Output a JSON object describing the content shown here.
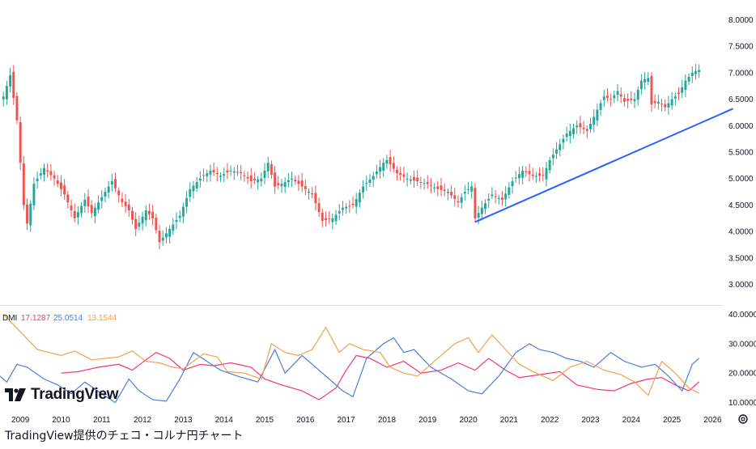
{
  "caption": "TradingView提供のチェコ・コルナ円チャート",
  "logo_text": "TradingView",
  "icons": {
    "logo": "tradingview-logo-icon",
    "settings": "gear-icon"
  },
  "colors": {
    "up": "#26a69a",
    "down": "#ef5350",
    "trendline": "#2962ff",
    "plus_di": "#f23674",
    "minus_di": "#4a7de0",
    "adx": "#f2a14a"
  },
  "chart_data": [
    {
      "type": "candlestick",
      "title": "",
      "interval": "monthly",
      "x_range": [
        "2008-07",
        "2026-04"
      ],
      "ylim": [
        2.75,
        8.25
      ],
      "yticks": [
        "8.0000",
        "7.5000",
        "7.0000",
        "6.5000",
        "6.0000",
        "5.5000",
        "5.0000",
        "4.5000",
        "4.0000",
        "3.5000",
        "3.0000"
      ],
      "ytick_values": [
        8,
        7.5,
        7,
        6.5,
        6,
        5.5,
        5,
        4.5,
        4,
        3.5,
        3
      ],
      "xticks": [
        "2009",
        "2010",
        "2011",
        "2012",
        "2013",
        "2014",
        "2015",
        "2016",
        "2017",
        "2018",
        "2019",
        "2020",
        "2021",
        "2022",
        "2023",
        "2024",
        "2025",
        "2026"
      ],
      "close_path": [
        [
          "2008-08",
          6.55
        ],
        [
          "2008-10",
          6.95
        ],
        [
          "2008-12",
          6.1
        ],
        [
          "2009-02",
          4.5
        ],
        [
          "2009-03",
          4.15
        ],
        [
          "2009-05",
          4.9
        ],
        [
          "2009-08",
          5.2
        ],
        [
          "2009-11",
          5.0
        ],
        [
          "2010-02",
          4.7
        ],
        [
          "2010-05",
          4.25
        ],
        [
          "2010-08",
          4.6
        ],
        [
          "2010-10",
          4.35
        ],
        [
          "2011-02",
          4.75
        ],
        [
          "2011-04",
          4.95
        ],
        [
          "2011-07",
          4.55
        ],
        [
          "2011-09",
          4.4
        ],
        [
          "2011-11",
          4.05
        ],
        [
          "2012-02",
          4.4
        ],
        [
          "2012-04",
          4.25
        ],
        [
          "2012-06",
          3.8
        ],
        [
          "2012-09",
          4.05
        ],
        [
          "2012-12",
          4.3
        ],
        [
          "2013-03",
          4.8
        ],
        [
          "2013-06",
          5.0
        ],
        [
          "2013-09",
          5.15
        ],
        [
          "2013-12",
          5.05
        ],
        [
          "2014-03",
          5.15
        ],
        [
          "2014-06",
          5.1
        ],
        [
          "2014-09",
          4.95
        ],
        [
          "2014-12",
          5.0
        ],
        [
          "2015-02",
          5.3
        ],
        [
          "2015-04",
          4.85
        ],
        [
          "2015-06",
          4.9
        ],
        [
          "2015-09",
          5.0
        ],
        [
          "2015-12",
          4.85
        ],
        [
          "2016-03",
          4.7
        ],
        [
          "2016-06",
          4.2
        ],
        [
          "2016-09",
          4.25
        ],
        [
          "2016-12",
          4.45
        ],
        [
          "2017-03",
          4.5
        ],
        [
          "2017-06",
          4.85
        ],
        [
          "2017-09",
          5.05
        ],
        [
          "2017-12",
          5.3
        ],
        [
          "2018-01",
          5.35
        ],
        [
          "2018-04",
          5.1
        ],
        [
          "2018-07",
          5.0
        ],
        [
          "2018-10",
          4.95
        ],
        [
          "2019-01",
          4.9
        ],
        [
          "2019-04",
          4.8
        ],
        [
          "2019-07",
          4.75
        ],
        [
          "2019-10",
          4.55
        ],
        [
          "2019-12",
          4.75
        ],
        [
          "2020-02",
          4.85
        ],
        [
          "2020-03",
          4.25
        ],
        [
          "2020-05",
          4.45
        ],
        [
          "2020-08",
          4.7
        ],
        [
          "2020-11",
          4.6
        ],
        [
          "2021-02",
          4.95
        ],
        [
          "2021-05",
          5.15
        ],
        [
          "2021-08",
          5.05
        ],
        [
          "2021-11",
          5.05
        ],
        [
          "2022-01",
          5.35
        ],
        [
          "2022-03",
          5.55
        ],
        [
          "2022-06",
          5.85
        ],
        [
          "2022-09",
          6.0
        ],
        [
          "2022-12",
          5.9
        ],
        [
          "2023-03",
          6.3
        ],
        [
          "2023-05",
          6.55
        ],
        [
          "2023-07",
          6.5
        ],
        [
          "2023-09",
          6.65
        ],
        [
          "2023-11",
          6.45
        ],
        [
          "2024-02",
          6.5
        ],
        [
          "2024-04",
          6.85
        ],
        [
          "2024-06",
          6.9
        ],
        [
          "2024-07",
          6.4
        ],
        [
          "2024-09",
          6.45
        ],
        [
          "2024-11",
          6.35
        ],
        [
          "2025-01",
          6.5
        ],
        [
          "2025-03",
          6.6
        ],
        [
          "2025-05",
          6.85
        ],
        [
          "2025-07",
          7.0
        ],
        [
          "2025-09",
          7.05
        ]
      ],
      "trendline": {
        "from": [
          "2020-03",
          4.18
        ],
        "to": [
          "2026-07",
          6.32
        ]
      }
    },
    {
      "type": "line",
      "title": "DMI",
      "ylim": [
        8,
        42
      ],
      "yticks": [
        "40.0000",
        "30.0000",
        "20.0000",
        "10.0000"
      ],
      "ytick_values": [
        40,
        30,
        20,
        10
      ],
      "legend": [
        "17.1287",
        "25.0514",
        "13.1544"
      ],
      "series": [
        {
          "name": "",
          "color_key": "plus_di",
          "points": [
            [
              "2010-01",
              20
            ],
            [
              "2010-06",
              20.5
            ],
            [
              "2010-12",
              22
            ],
            [
              "2011-06",
              23
            ],
            [
              "2011-10",
              21
            ],
            [
              "2012-02",
              24.5
            ],
            [
              "2012-05",
              27
            ],
            [
              "2012-09",
              25
            ],
            [
              "2013-01",
              21
            ],
            [
              "2013-06",
              23
            ],
            [
              "2013-10",
              22.5
            ],
            [
              "2014-03",
              23.5
            ],
            [
              "2014-09",
              22
            ],
            [
              "2015-01",
              18
            ],
            [
              "2015-06",
              16
            ],
            [
              "2015-12",
              14
            ],
            [
              "2016-05",
              11
            ],
            [
              "2016-10",
              15
            ],
            [
              "2017-01",
              21
            ],
            [
              "2017-04",
              26
            ],
            [
              "2017-08",
              25
            ],
            [
              "2018-01",
              22
            ],
            [
              "2018-06",
              24
            ],
            [
              "2018-11",
              20
            ],
            [
              "2019-05",
              21
            ],
            [
              "2019-10",
              23.5
            ],
            [
              "2020-03",
              21
            ],
            [
              "2020-07",
              25
            ],
            [
              "2020-12",
              21
            ],
            [
              "2021-04",
              18.5
            ],
            [
              "2021-10",
              19.5
            ],
            [
              "2022-04",
              20.5
            ],
            [
              "2022-09",
              16
            ],
            [
              "2023-03",
              14.5
            ],
            [
              "2023-08",
              14
            ],
            [
              "2024-01",
              16.5
            ],
            [
              "2024-06",
              18
            ],
            [
              "2024-10",
              18.5
            ],
            [
              "2025-02",
              16
            ],
            [
              "2025-06",
              14
            ],
            [
              "2025-09",
              17.1
            ]
          ]
        },
        {
          "name": "",
          "color_key": "minus_di",
          "points": [
            [
              "2008-07",
              19
            ],
            [
              "2008-09",
              17
            ],
            [
              "2008-12",
              23
            ],
            [
              "2009-03",
              22
            ],
            [
              "2009-08",
              18
            ],
            [
              "2009-12",
              16
            ],
            [
              "2010-04",
              13
            ],
            [
              "2010-08",
              17
            ],
            [
              "2011-01",
              13
            ],
            [
              "2011-05",
              10
            ],
            [
              "2011-09",
              18
            ],
            [
              "2011-12",
              14
            ],
            [
              "2012-04",
              11
            ],
            [
              "2012-08",
              10.5
            ],
            [
              "2012-12",
              18
            ],
            [
              "2013-04",
              27
            ],
            [
              "2013-08",
              24
            ],
            [
              "2013-12",
              21
            ],
            [
              "2014-05",
              19
            ],
            [
              "2014-11",
              17
            ],
            [
              "2015-04",
              28
            ],
            [
              "2015-07",
              20
            ],
            [
              "2015-12",
              26
            ],
            [
              "2016-04",
              22
            ],
            [
              "2016-08",
              18
            ],
            [
              "2016-12",
              14
            ],
            [
              "2017-03",
              12
            ],
            [
              "2017-07",
              25
            ],
            [
              "2017-12",
              30
            ],
            [
              "2018-03",
              32
            ],
            [
              "2018-06",
              27
            ],
            [
              "2018-09",
              28
            ],
            [
              "2019-02",
              22
            ],
            [
              "2019-08",
              18
            ],
            [
              "2020-01",
              14
            ],
            [
              "2020-05",
              13
            ],
            [
              "2020-10",
              19
            ],
            [
              "2021-03",
              27
            ],
            [
              "2021-07",
              30
            ],
            [
              "2021-10",
              28
            ],
            [
              "2022-02",
              27
            ],
            [
              "2022-06",
              25
            ],
            [
              "2022-10",
              24
            ],
            [
              "2023-02",
              22
            ],
            [
              "2023-07",
              27
            ],
            [
              "2023-11",
              24
            ],
            [
              "2024-04",
              22
            ],
            [
              "2024-08",
              23
            ],
            [
              "2024-12",
              19
            ],
            [
              "2025-04",
              14
            ],
            [
              "2025-07",
              23
            ],
            [
              "2025-09",
              25.05
            ]
          ]
        },
        {
          "name": "",
          "color_key": "adx",
          "points": [
            [
              "2008-08",
              40
            ],
            [
              "2009-01",
              34
            ],
            [
              "2009-06",
              28
            ],
            [
              "2010-01",
              26
            ],
            [
              "2010-05",
              27.5
            ],
            [
              "2010-10",
              24.5
            ],
            [
              "2011-02",
              25
            ],
            [
              "2011-06",
              25.5
            ],
            [
              "2011-10",
              27.5
            ],
            [
              "2012-02",
              24
            ],
            [
              "2012-06",
              23.5
            ],
            [
              "2012-10",
              22
            ],
            [
              "2013-01",
              21.5
            ],
            [
              "2013-04",
              24
            ],
            [
              "2013-07",
              26.5
            ],
            [
              "2013-11",
              25.5
            ],
            [
              "2014-02",
              20.5
            ],
            [
              "2014-07",
              20
            ],
            [
              "2014-12",
              18
            ],
            [
              "2015-03",
              30
            ],
            [
              "2015-07",
              27
            ],
            [
              "2015-11",
              26
            ],
            [
              "2016-03",
              28
            ],
            [
              "2016-07",
              35.5
            ],
            [
              "2016-11",
              27
            ],
            [
              "2017-02",
              30
            ],
            [
              "2017-06",
              28
            ],
            [
              "2017-11",
              27
            ],
            [
              "2018-02",
              22
            ],
            [
              "2018-06",
              20
            ],
            [
              "2018-10",
              19
            ],
            [
              "2019-03",
              24
            ],
            [
              "2019-09",
              30
            ],
            [
              "2020-01",
              32
            ],
            [
              "2020-04",
              27
            ],
            [
              "2020-08",
              33
            ],
            [
              "2020-12",
              28
            ],
            [
              "2021-04",
              23
            ],
            [
              "2021-09",
              20
            ],
            [
              "2022-02",
              17.5
            ],
            [
              "2022-07",
              22
            ],
            [
              "2022-12",
              24
            ],
            [
              "2023-05",
              21
            ],
            [
              "2023-10",
              19.5
            ],
            [
              "2024-02",
              17
            ],
            [
              "2024-06",
              12.5
            ],
            [
              "2024-10",
              24
            ],
            [
              "2025-02",
              20
            ],
            [
              "2025-06",
              15
            ],
            [
              "2025-09",
              13.15
            ]
          ]
        }
      ]
    }
  ]
}
